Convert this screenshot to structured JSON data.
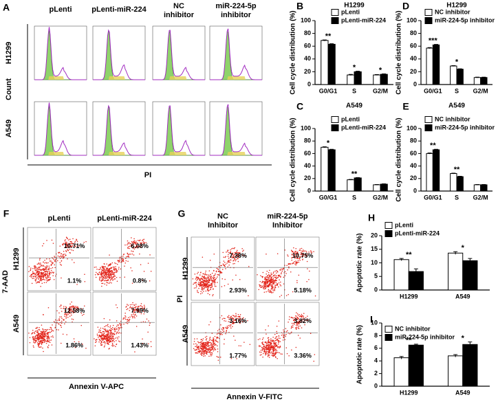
{
  "histogram_panel": {
    "letter": "A",
    "columns": [
      [
        "pLenti"
      ],
      [
        "pLenti-miR-224"
      ],
      [
        "NC",
        "inhibitor"
      ],
      [
        "miR-224-5p",
        "inhibitor"
      ]
    ],
    "rows": [
      "H1299",
      "A549"
    ],
    "y_label": "Count",
    "x_label": "PI"
  },
  "apoptosis_panels": [
    {
      "letter": "F",
      "columns": [
        [
          "pLenti"
        ],
        [
          "pLenti-miR-224"
        ]
      ],
      "rows": [
        "H1299",
        "A549"
      ],
      "y_label": "7-AAD",
      "x_label": "Annexin V-APC",
      "percentages": [
        [
          [
            "10.71%",
            "1.1%"
          ],
          [
            "6.08%",
            "0.8%"
          ]
        ],
        [
          [
            "12.58%",
            "1.86%"
          ],
          [
            "7.99%",
            "1.43%"
          ]
        ]
      ]
    },
    {
      "letter": "G",
      "columns": [
        [
          "NC",
          "Inhibitor"
        ],
        [
          "miR-224-5p",
          "Inhibitor"
        ]
      ],
      "rows": [
        "H1299",
        "A549"
      ],
      "y_label": "PI",
      "x_label": "Annexin V-FITC",
      "percentages": [
        [
          [
            "7.38%",
            "2.93%"
          ],
          [
            "10.75%",
            "5.18%"
          ]
        ],
        [
          [
            "3.16%",
            "1.77%"
          ],
          [
            "3.82%",
            "3.36%"
          ]
        ]
      ]
    }
  ],
  "chart_data": [
    {
      "panel": "B",
      "type": "bar",
      "title": "H1299",
      "y_label": "Cell cycle distribution (%)",
      "categories": [
        "G0/G1",
        "S",
        "G2/M"
      ],
      "series": [
        {
          "name": "pLenti",
          "color": "#ffffff",
          "values": [
            69,
            15,
            15
          ],
          "errors": [
            0.8,
            0.8,
            0.6
          ]
        },
        {
          "name": "pLenti-miR-224",
          "color": "#000000",
          "values": [
            63,
            20,
            16
          ],
          "errors": [
            0.8,
            0.8,
            0.6
          ]
        }
      ],
      "annotations": [
        "**",
        "*",
        "*"
      ],
      "ylim": [
        0,
        100
      ],
      "yticks": [
        0,
        20,
        40,
        60,
        80,
        100
      ]
    },
    {
      "panel": "C",
      "type": "bar",
      "title": "A549",
      "y_label": "Cell cycle distribution (%)",
      "categories": [
        "G0/G1",
        "S",
        "G2/M"
      ],
      "series": [
        {
          "name": "pLenti",
          "color": "#ffffff",
          "values": [
            70,
            18,
            10
          ],
          "errors": [
            0.8,
            0.6,
            0.5
          ]
        },
        {
          "name": "pLenti-miR-224",
          "color": "#000000",
          "values": [
            66,
            21,
            11
          ],
          "errors": [
            0.8,
            0.6,
            0.5
          ]
        }
      ],
      "annotations": [
        "*",
        "**",
        null
      ],
      "ylim": [
        0,
        100
      ],
      "yticks": [
        0,
        20,
        40,
        60,
        80,
        100
      ]
    },
    {
      "panel": "D",
      "type": "bar",
      "title": "H1299",
      "y_label": "Cell cycle distribution (%)",
      "categories": [
        "G0/G1",
        "S",
        "G2/M"
      ],
      "series": [
        {
          "name": "NC inhibitor",
          "color": "#ffffff",
          "values": [
            57,
            29,
            11
          ],
          "errors": [
            0.8,
            0.6,
            0.5
          ]
        },
        {
          "name": "miR-224-5p inhibitor",
          "color": "#000000",
          "values": [
            62,
            24,
            11
          ],
          "errors": [
            0.8,
            0.6,
            0.5
          ]
        }
      ],
      "annotations": [
        "***",
        "*",
        null
      ],
      "ylim": [
        0,
        100
      ],
      "yticks": [
        0,
        20,
        40,
        60,
        80,
        100
      ]
    },
    {
      "panel": "E",
      "type": "bar",
      "title": "A549",
      "y_label": "Cell cycle distribution (%)",
      "categories": [
        "G0/G1",
        "S",
        "G2/M"
      ],
      "series": [
        {
          "name": "NC inhibitor",
          "color": "#ffffff",
          "values": [
            60,
            28,
            10
          ],
          "errors": [
            0.8,
            0.6,
            0.5
          ]
        },
        {
          "name": "miR-224-5p inhibitor",
          "color": "#000000",
          "values": [
            66,
            23,
            10
          ],
          "errors": [
            0.8,
            0.6,
            0.5
          ]
        }
      ],
      "annotations": [
        "**",
        "**",
        null
      ],
      "ylim": [
        0,
        100
      ],
      "yticks": [
        0,
        20,
        40,
        60,
        80,
        100
      ]
    },
    {
      "panel": "H",
      "type": "bar",
      "y_label": "Apoptotic rate (%)",
      "categories": [
        "H1299",
        "A549"
      ],
      "series": [
        {
          "name": "pLenti",
          "color": "#ffffff",
          "values": [
            11.2,
            13.6
          ],
          "errors": [
            0.4,
            0.5
          ]
        },
        {
          "name": "pLenti-miR-224",
          "color": "#000000",
          "values": [
            6.8,
            10.8
          ],
          "errors": [
            1.0,
            0.8
          ]
        }
      ],
      "annotations": [
        "**",
        "*"
      ],
      "ylim": [
        0,
        20
      ],
      "yticks": [
        0,
        5,
        10,
        15,
        20
      ]
    },
    {
      "panel": "I",
      "type": "bar",
      "y_label": "Apoptotic rate (%)",
      "categories": [
        "H1299",
        "A549"
      ],
      "series": [
        {
          "name": "NC inhibitor",
          "color": "#ffffff",
          "values": [
            4.5,
            4.8
          ],
          "errors": [
            0.2,
            0.2
          ]
        },
        {
          "name": "miR-224-5p inhibitor",
          "color": "#000000",
          "values": [
            6.5,
            6.6
          ],
          "errors": [
            0.15,
            0.4
          ]
        }
      ],
      "annotations": [
        "**",
        "*"
      ],
      "ylim": [
        0,
        10
      ],
      "yticks": [
        0,
        2,
        4,
        6,
        8,
        10
      ]
    }
  ]
}
